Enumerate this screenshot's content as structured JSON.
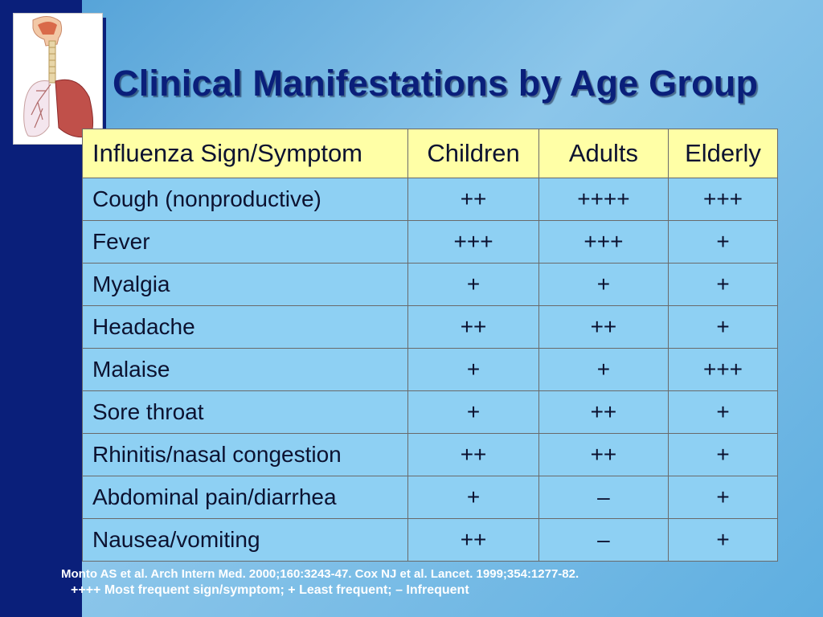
{
  "slide": {
    "title": "Clinical Manifestations by Age Group",
    "logo_icon": "respiratory-system-icon"
  },
  "table": {
    "headers": [
      "Influenza Sign/Symptom",
      "Children",
      "Adults",
      "Elderly"
    ],
    "rows": [
      [
        "Cough (nonproductive)",
        "++",
        "++++",
        "+++"
      ],
      [
        "Fever",
        "+++",
        "+++",
        "+"
      ],
      [
        "Myalgia",
        "+",
        "+",
        "+"
      ],
      [
        "Headache",
        "++",
        "++",
        "+"
      ],
      [
        "Malaise",
        "+",
        "+",
        "+++"
      ],
      [
        "Sore throat",
        "+",
        "++",
        "+"
      ],
      [
        "Rhinitis/nasal congestion",
        "++",
        "++",
        "+"
      ],
      [
        "Abdominal pain/diarrhea",
        "+",
        "–",
        "+"
      ],
      [
        "Nausea/vomiting",
        "++",
        "–",
        "+"
      ]
    ]
  },
  "footer": {
    "citation": "Monto AS et al. Arch Intern Med. 2000;160:3243-47. Cox NJ et al. Lancet. 1999;354:1277-82.",
    "legend": "++++ Most frequent sign/symptom; + Least frequent; – Infrequent"
  },
  "colors": {
    "sidebar": "#0a1f7a",
    "title": "#0a1f7a",
    "header_bg": "#ffffa6",
    "cell_bg": "#8ed0f3"
  }
}
